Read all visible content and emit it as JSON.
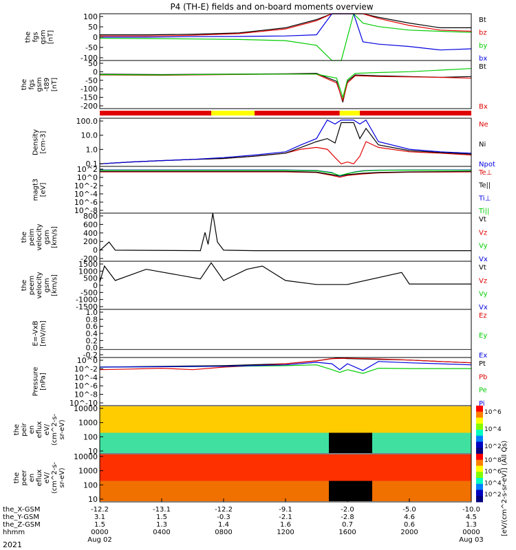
{
  "title": "P4 (TH-E) fields and on-board moments overview",
  "date_label": "2021",
  "colorbar_label": "[eV/(cm^2-s-sr-eV)] (All Qs)",
  "colors": {
    "black": "#000000",
    "red": "#e00000",
    "green": "#00cc00",
    "blue": "#0000e0",
    "yellow": "#ffff00"
  },
  "chart_data": [
    {
      "type": "line",
      "id": "fgs",
      "ylabel": [
        "the",
        "fgs",
        "gsm",
        "[nT]"
      ],
      "ylim": [
        -100,
        100
      ],
      "ticks": [
        "100",
        "50",
        "0",
        "-50",
        "-100"
      ],
      "legend": [
        "Bt",
        "bz",
        "by",
        "bx"
      ],
      "series": [
        {
          "name": "Bt",
          "color": "black",
          "x": [
            0,
            3,
            6,
            9,
            12,
            14,
            15,
            15.6,
            16.4,
            17,
            18,
            20,
            22,
            24
          ],
          "y": [
            10,
            10,
            12,
            18,
            40,
            75,
            100,
            100,
            100,
            100,
            85,
            60,
            40,
            40
          ]
        },
        {
          "name": "bz",
          "color": "red",
          "x": [
            0,
            3,
            6,
            9,
            12,
            14,
            15,
            15.6,
            16.4,
            17,
            18,
            20,
            22,
            24
          ],
          "y": [
            5,
            5,
            8,
            15,
            35,
            70,
            100,
            100,
            100,
            100,
            80,
            50,
            30,
            25
          ]
        },
        {
          "name": "by",
          "color": "green",
          "x": [
            0,
            3,
            6,
            9,
            12,
            14,
            15,
            15.6,
            16.4,
            17,
            18,
            20,
            22,
            24
          ],
          "y": [
            -5,
            -6,
            -8,
            -10,
            -15,
            -35,
            -100,
            -100,
            100,
            60,
            45,
            30,
            25,
            20
          ]
        },
        {
          "name": "bx",
          "color": "blue",
          "x": [
            0,
            3,
            6,
            9,
            12,
            14,
            15,
            15.6,
            16.4,
            17,
            18,
            20,
            22,
            24
          ],
          "y": [
            0,
            0,
            2,
            3,
            5,
            10,
            100,
            100,
            100,
            -20,
            -30,
            -40,
            -55,
            -50
          ]
        }
      ]
    },
    {
      "type": "line",
      "id": "fgs_dsl",
      "ylabel": [
        "the",
        "fgs",
        "gsm",
        "-t89",
        "[nT]"
      ],
      "ylim": [
        -220,
        80
      ],
      "ticks": [
        "50",
        "0",
        "-50",
        "-100",
        "-150",
        "-200"
      ],
      "legend": [
        "Bt",
        "Bx"
      ],
      "series": [
        {
          "name": "Bt",
          "color": "black",
          "x": [
            0,
            4,
            8,
            12,
            14,
            15.3,
            15.7,
            16,
            16.5,
            18,
            20,
            22,
            24
          ],
          "y": [
            -5,
            -8,
            -5,
            -3,
            0,
            -50,
            -180,
            -50,
            -10,
            -15,
            -20,
            -25,
            -20
          ]
        },
        {
          "name": "Bx",
          "color": "red",
          "x": [
            0,
            4,
            8,
            12,
            14,
            15.3,
            15.7,
            16,
            16.5,
            18,
            20,
            22,
            24
          ],
          "y": [
            -10,
            -12,
            -8,
            -5,
            -5,
            -60,
            -170,
            -60,
            -15,
            -20,
            -22,
            -25,
            -30
          ]
        },
        {
          "name": "By",
          "color": "green",
          "x": [
            0,
            4,
            8,
            12,
            14,
            15.3,
            15.7,
            16,
            16.5,
            18,
            20,
            22,
            24
          ],
          "y": [
            -8,
            -10,
            -6,
            -5,
            -5,
            -30,
            -150,
            -40,
            0,
            5,
            10,
            20,
            30
          ]
        }
      ]
    },
    {
      "type": "line",
      "id": "density",
      "ylabel": [
        "Density",
        "[cm-3]"
      ],
      "log": true,
      "ylim": [
        0.1,
        200
      ],
      "ticks": [
        "100.0",
        "10.0",
        "1.0",
        "0.1"
      ],
      "legend": [
        "Ne",
        "Ni",
        "Npot"
      ],
      "series": [
        {
          "name": "Ne",
          "color": "red",
          "x": [
            0,
            2,
            4,
            6,
            8,
            10,
            12,
            13,
            14,
            14.7,
            15.2,
            15.6,
            16,
            16.4,
            16.8,
            17.2,
            18,
            20,
            22,
            24
          ],
          "y": [
            0.15,
            0.2,
            0.25,
            0.3,
            0.35,
            0.5,
            0.8,
            1.5,
            2,
            1.5,
            0.4,
            0.15,
            0.2,
            0.15,
            0.5,
            5,
            2,
            1,
            0.8,
            0.6
          ]
        },
        {
          "name": "Ni",
          "color": "black",
          "x": [
            0,
            2,
            4,
            6,
            8,
            10,
            12,
            13,
            14,
            14.7,
            15.2,
            15.6,
            16,
            16.4,
            16.8,
            17.2,
            18,
            20,
            22,
            24
          ],
          "y": [
            0.15,
            0.2,
            0.25,
            0.3,
            0.35,
            0.5,
            0.8,
            2,
            5,
            8,
            4,
            100,
            100,
            100,
            8,
            40,
            3,
            1.2,
            0.9,
            0.7
          ]
        },
        {
          "name": "Npot",
          "color": "blue",
          "x": [
            0,
            2,
            4,
            6,
            8,
            10,
            12,
            13,
            14,
            14.7,
            15.2,
            15.6,
            16,
            16.4,
            16.8,
            17.2,
            18,
            20,
            22,
            24
          ],
          "y": [
            0.15,
            0.2,
            0.25,
            0.3,
            0.4,
            0.6,
            1,
            3,
            8,
            150,
            80,
            150,
            150,
            150,
            80,
            150,
            5,
            1.5,
            1,
            0.8
          ]
        }
      ]
    },
    {
      "type": "line",
      "id": "temp",
      "ylabel": [
        "magt3",
        "[eV]"
      ],
      "log": true,
      "ylim": [
        1e-09,
        10000.0
      ],
      "ticks": [
        "10^2",
        "10^0",
        "10^-2",
        "10^-4",
        "10^-6",
        "10^-8"
      ],
      "legend": [
        "Te⊥",
        "Te||",
        "Ti⊥",
        "Ti||"
      ],
      "series": [
        {
          "name": "Te⊥",
          "color": "red",
          "x": [
            0,
            4,
            8,
            12,
            14,
            15,
            15.5,
            16,
            16.5,
            17,
            18,
            20,
            24
          ],
          "y": [
            300,
            300,
            300,
            300,
            200,
            30,
            10,
            30,
            50,
            80,
            150,
            250,
            300
          ]
        },
        {
          "name": "Te||",
          "color": "black",
          "x": [
            0,
            4,
            8,
            12,
            14,
            15,
            15.5,
            16,
            16.5,
            17,
            18,
            20,
            24
          ],
          "y": [
            400,
            400,
            400,
            400,
            250,
            50,
            20,
            50,
            80,
            120,
            200,
            300,
            400
          ]
        },
        {
          "name": "Ti⊥",
          "color": "blue",
          "x": [
            0,
            4,
            8,
            12,
            14,
            15,
            15.5,
            16,
            16.5,
            17,
            18,
            20,
            24
          ],
          "y": [
            1000,
            1000,
            1000,
            1000,
            700,
            200,
            20,
            100,
            300,
            600,
            900,
            1000,
            1000
          ]
        },
        {
          "name": "Ti||",
          "color": "green",
          "x": [
            0,
            4,
            8,
            12,
            14,
            15,
            15.5,
            16,
            16.5,
            17,
            18,
            20,
            24
          ],
          "y": [
            800,
            800,
            800,
            800,
            600,
            150,
            30,
            100,
            250,
            500,
            800,
            900,
            800
          ]
        }
      ]
    },
    {
      "type": "line",
      "id": "peim",
      "ylabel": [
        "the",
        "peim",
        "velocity",
        "gsm",
        "[km/s]"
      ],
      "ylim": [
        -200,
        800
      ],
      "ticks": [
        "800",
        "600",
        "400",
        "200",
        "0",
        "-200"
      ],
      "legend": [
        "Vt",
        "Vz",
        "Vy",
        "Vx"
      ],
      "series": [
        {
          "name": "Vt",
          "color": "black",
          "x": [
            0,
            0.6,
            1,
            6.5,
            6.8,
            7,
            7.3,
            7.6,
            8,
            10,
            12,
            16,
            22,
            24
          ],
          "y": [
            20,
            200,
            30,
            20,
            400,
            150,
            800,
            200,
            30,
            20,
            20,
            20,
            20,
            20
          ]
        }
      ]
    },
    {
      "type": "line",
      "id": "peem",
      "ylabel": [
        "the",
        "peem",
        "velocity",
        "gsm",
        "[km/s]"
      ],
      "ylim": [
        -1500,
        1500
      ],
      "ticks": [
        "1500",
        "1000",
        "500",
        "0",
        "-500",
        "-1000",
        "-1500"
      ],
      "legend": [
        "Vt",
        "Vz",
        "Vy",
        "Vx"
      ],
      "series": [
        {
          "name": "Vt",
          "color": "black",
          "x": [
            0,
            0.3,
            1,
            3,
            6.5,
            7.2,
            8,
            9.5,
            10.5,
            12,
            14,
            16,
            19.5,
            20,
            24
          ],
          "y": [
            200,
            1200,
            300,
            1000,
            400,
            1400,
            300,
            1000,
            1200,
            300,
            50,
            50,
            800,
            80,
            80
          ]
        }
      ]
    },
    {
      "type": "line",
      "id": "efield",
      "ylabel": [
        "E=-VxB",
        "[mV/m]"
      ],
      "ylim": [
        -0.2,
        1.0
      ],
      "ticks": [
        "1.0",
        "0.8",
        "0.6",
        "0.4",
        "0.2",
        "0.0",
        "-0.2"
      ],
      "legend": [
        "Ez",
        "Ey",
        "Ex"
      ],
      "series": []
    },
    {
      "type": "line",
      "id": "pressure",
      "ylabel": [
        "Pressure",
        "[nPa]"
      ],
      "log": true,
      "ylim": [
        1e-10,
        1
      ],
      "ticks": [
        "10^0",
        "10^-2",
        "10^-4",
        "10^-6",
        "10^-8",
        "10^-10"
      ],
      "legend": [
        "Pt",
        "Pb",
        "Pe",
        "Pi"
      ],
      "series": [
        {
          "name": "Pt",
          "color": "black",
          "x": [
            0,
            4,
            8,
            12,
            14,
            15,
            15.5,
            16,
            17,
            18,
            20,
            22,
            24
          ],
          "y": [
            0.01,
            0.015,
            0.02,
            0.05,
            0.2,
            0.6,
            0.8,
            0.6,
            0.5,
            0.4,
            0.3,
            0.15,
            0.08
          ]
        },
        {
          "name": "Pb",
          "color": "red",
          "x": [
            0,
            2,
            4,
            6,
            8,
            10,
            12,
            14,
            15,
            16,
            18,
            20,
            22,
            24
          ],
          "y": [
            0.003,
            0.004,
            0.006,
            0.003,
            0.01,
            0.02,
            0.05,
            0.2,
            0.6,
            0.7,
            0.5,
            0.3,
            0.15,
            0.08
          ]
        },
        {
          "name": "Pe",
          "color": "green",
          "x": [
            0,
            4,
            8,
            12,
            14,
            15,
            15.5,
            16,
            17,
            18,
            20,
            22,
            24
          ],
          "y": [
            0.01,
            0.012,
            0.015,
            0.02,
            0.03,
            0.003,
            0.0008,
            0.003,
            0.0005,
            0.006,
            0.005,
            0.005,
            0.005
          ]
        },
        {
          "name": "Pi",
          "color": "blue",
          "x": [
            0,
            4,
            8,
            12,
            14,
            15,
            15.5,
            16,
            17,
            18,
            20,
            22,
            24
          ],
          "y": [
            0.01,
            0.012,
            0.015,
            0.03,
            0.1,
            0.05,
            0.003,
            0.05,
            0.002,
            0.15,
            0.08,
            0.05,
            0.03
          ]
        }
      ]
    },
    {
      "type": "heatmap",
      "id": "peir",
      "ylabel": [
        "the",
        "peir",
        "en",
        "eflux",
        "eV/",
        "(cm^2-s-",
        "sr-eV)"
      ],
      "ylim": [
        5,
        20000
      ],
      "ticks": [
        "10000",
        "1000",
        "100",
        "10"
      ],
      "colorbar_ticks": [
        "10^6",
        "10^4",
        "10^2"
      ]
    },
    {
      "type": "heatmap",
      "id": "peer",
      "ylabel": [
        "the",
        "peer",
        "en",
        "eflux",
        "eV/",
        "(cm^2-s-",
        "sr-eV)"
      ],
      "ylim": [
        5,
        20000
      ],
      "ticks": [
        "10000",
        "1000",
        "100",
        "10"
      ],
      "colorbar_ticks": [
        "10^8",
        "10^6",
        "10^4",
        "10^2"
      ]
    }
  ],
  "mode_bar": [
    {
      "from": 0,
      "to": 7.2,
      "color": "red"
    },
    {
      "from": 7.2,
      "to": 10,
      "color": "yellow"
    },
    {
      "from": 10,
      "to": 15.5,
      "color": "red"
    },
    {
      "from": 15.5,
      "to": 16.8,
      "color": "yellow"
    },
    {
      "from": 16.8,
      "to": 24,
      "color": "red"
    }
  ],
  "x_axis": {
    "rows": [
      {
        "label": "the_X-GSM",
        "values": [
          "-12.2",
          "-13.1",
          "-12.2",
          "-9.1",
          "-2.0",
          "-5.0",
          "-10.0"
        ]
      },
      {
        "label": "the_Y-GSM",
        "values": [
          "3.1",
          "1.5",
          "-0.3",
          "-2.1",
          "-2.8",
          "4.6",
          "4.5"
        ]
      },
      {
        "label": "the_Z-GSM",
        "values": [
          "1.5",
          "1.3",
          "1.4",
          "1.6",
          "0.7",
          "0.6",
          "1.3"
        ]
      },
      {
        "label": "hhmm",
        "values": [
          "0000",
          "0400",
          "0800",
          "1200",
          "1600",
          "2000",
          "0000"
        ]
      }
    ],
    "date_row": {
      "label": "2021",
      "values": [
        "Aug 02",
        "",
        "",
        "",
        "",
        "",
        "Aug 03"
      ]
    }
  }
}
